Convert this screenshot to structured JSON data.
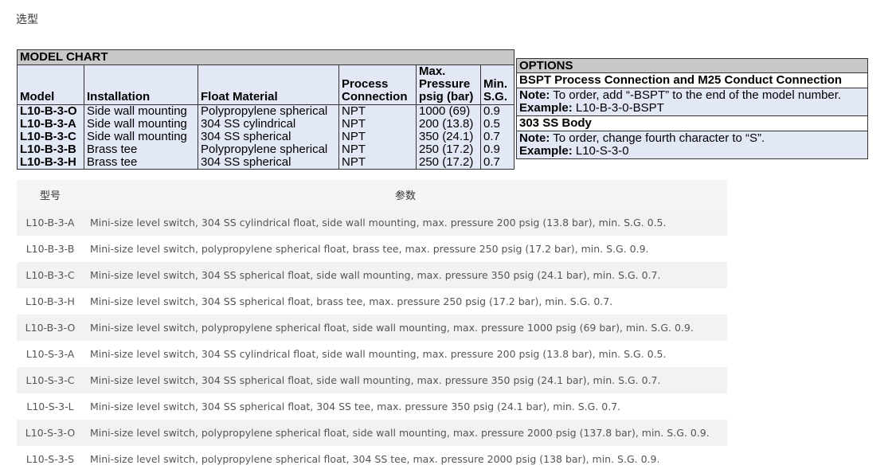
{
  "section_title": "选型",
  "model_chart": {
    "title": "MODEL CHART",
    "headers": [
      "Model",
      "Installation",
      "Float Material",
      "Process Connection",
      "Max. Pressure psig (bar)",
      "Min. S.G."
    ],
    "rows": [
      [
        "L10-B-3-O",
        "Side wall mounting",
        "Polypropylene spherical",
        "NPT",
        "1000 (69)",
        "0.9"
      ],
      [
        "L10-B-3-A",
        "Side wall mounting",
        "304 SS cylindrical",
        "NPT",
        "200 (13.8)",
        "0.5"
      ],
      [
        "L10-B-3-C",
        "Side wall mounting",
        "304 SS spherical",
        "NPT",
        "350 (24.1)",
        "0.7"
      ],
      [
        "L10-B-3-B",
        "Brass tee",
        "Polypropylene spherical",
        "NPT",
        "250 (17.2)",
        "0.9"
      ],
      [
        "L10-B-3-H",
        "Brass tee",
        "304 SS spherical",
        "NPT",
        "250 (17.2)",
        "0.7"
      ]
    ]
  },
  "options": {
    "title": "OPTIONS",
    "sections": [
      {
        "subtitle": "BSPT Process Connection and M25 Conduct Connection",
        "note_label": "Note:",
        "note_text": " To order, add “-BSPT” to the end of the model number.",
        "example_label": "Example:",
        "example_text": " L10-B-3-0-BSPT"
      },
      {
        "subtitle": "303 SS Body",
        "note_label": "Note:",
        "note_text": " To order, change fourth character to “S”.",
        "example_label": "Example:",
        "example_text": " L10-S-3-0"
      }
    ]
  },
  "param_table": {
    "headers": [
      "型号",
      "参数"
    ],
    "rows": [
      [
        "L10-B-3-A",
        "Mini-size level switch, 304 SS cylindrical float, side wall mounting, max. pressure 200 psig (13.8 bar), min. S.G. 0.5."
      ],
      [
        "L10-B-3-B",
        "Mini-size level switch, polypropylene spherical float, brass tee, max. pressure 250 psig (17.2 bar), min. S.G. 0.9."
      ],
      [
        "L10-B-3-C",
        "Mini-size level switch, 304 SS spherical float, side wall mounting, max. pressure 350 psig (24.1 bar), min. S.G. 0.7."
      ],
      [
        "L10-B-3-H",
        "Mini-size level switch, 304 SS spherical float, brass tee, max. pressure 250 psig (17.2 bar), min. S.G. 0.7."
      ],
      [
        "L10-B-3-O",
        "Mini-size level switch, polypropylene spherical float, side wall mounting, max. pressure 1000 psig (69 bar), min. S.G. 0.9."
      ],
      [
        "L10-S-3-A",
        "Mini-size level switch, 304 SS cylindrical float, side wall mounting, max. pressure 200 psig (13.8 bar), min. S.G. 0.5."
      ],
      [
        "L10-S-3-C",
        "Mini-size level switch, 304 SS spherical float, side wall mounting, max. pressure 350 psig (24.1 bar), min. S.G. 0.7."
      ],
      [
        "L10-S-3-L",
        "Mini-size level switch, 304 SS spherical float, 304 SS tee, max. pressure 350 psig (24.1 bar), min. S.G. 0.7."
      ],
      [
        "L10-S-3-O",
        "Mini-size level switch, polypropylene spherical float, side wall mounting, max. pressure 2000 psig (137.8 bar), min. S.G. 0.9."
      ],
      [
        "L10-S-3-S",
        "Mini-size level switch, polypropylene spherical float, 304 SS tee, max. pressure 2000 psig (138 bar), min. S.G. 0.9."
      ]
    ]
  }
}
